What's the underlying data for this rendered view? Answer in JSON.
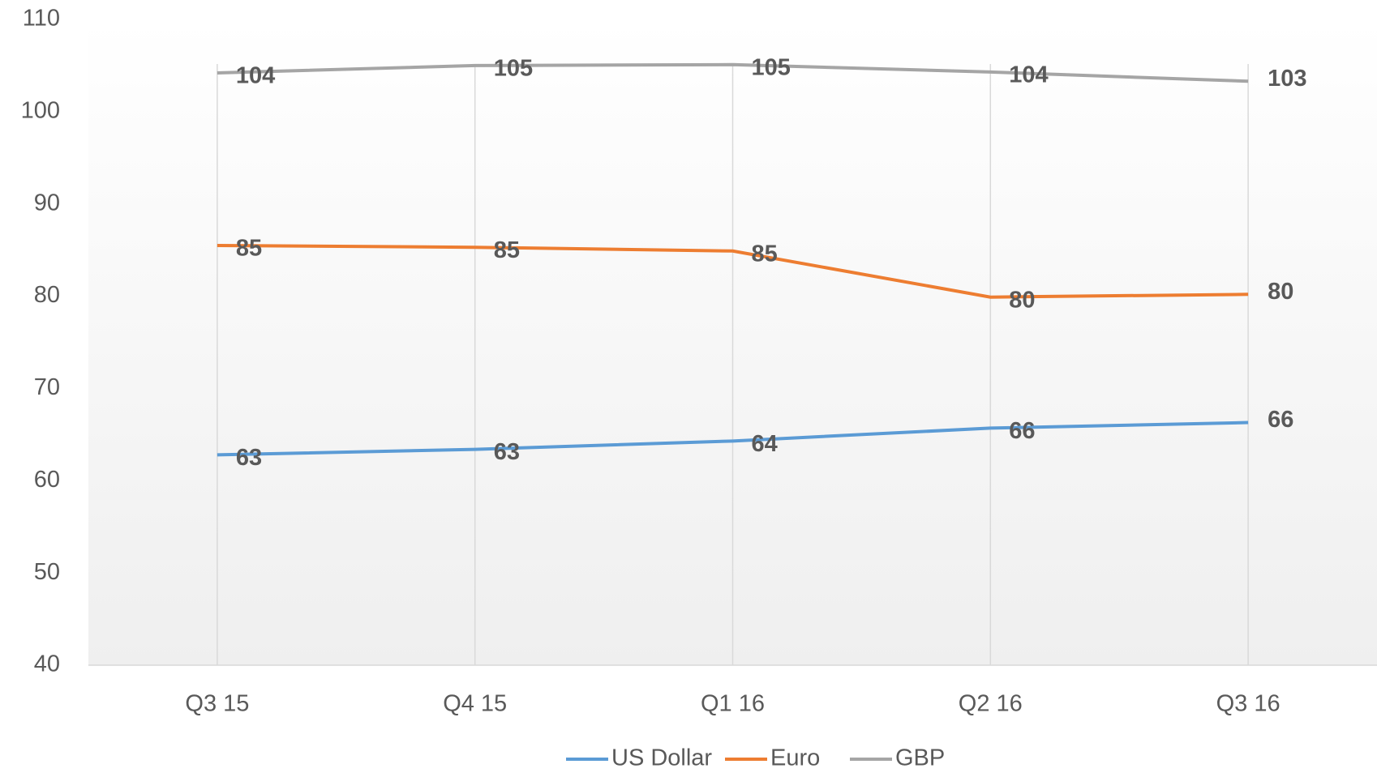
{
  "chart_data": {
    "type": "line",
    "categories": [
      "Q3 15",
      "Q4 15",
      "Q1 16",
      "Q2 16",
      "Q3 16"
    ],
    "series": [
      {
        "name": "US Dollar",
        "color": "#5b9bd5",
        "values": [
          62.8,
          63.4,
          64.3,
          65.7,
          66.3
        ],
        "value_labels": [
          "63",
          "63",
          "64",
          "66",
          "66"
        ]
      },
      {
        "name": "Euro",
        "color": "#ed7d31",
        "values": [
          85.5,
          85.3,
          84.9,
          79.9,
          80.2
        ],
        "value_labels": [
          "85",
          "85",
          "85",
          "80",
          "80"
        ]
      },
      {
        "name": "GBP",
        "color": "#a5a5a5",
        "values": [
          104.2,
          105.0,
          105.1,
          104.3,
          103.3
        ],
        "value_labels": [
          "104",
          "105",
          "105",
          "104",
          "103"
        ]
      }
    ],
    "ylim": [
      40,
      110
    ],
    "yticks": [
      40,
      50,
      60,
      70,
      80,
      90,
      100,
      110
    ],
    "legend": "bottom"
  }
}
